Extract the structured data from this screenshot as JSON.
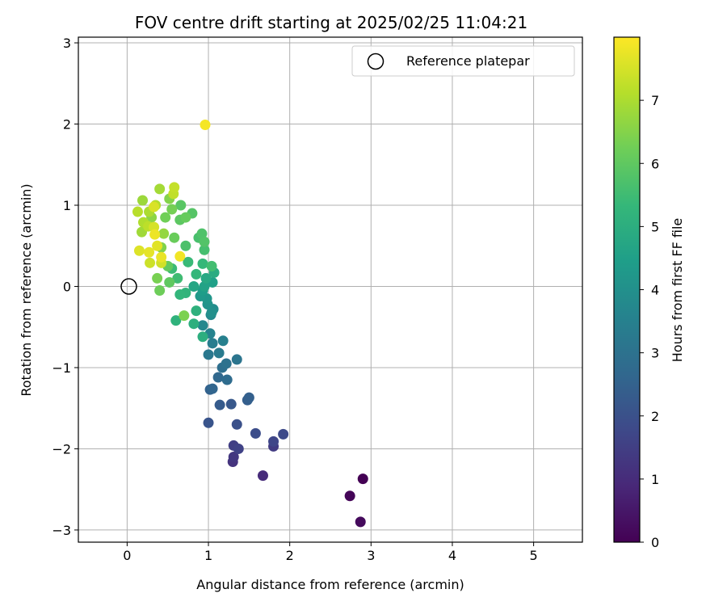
{
  "chart_data": {
    "type": "scatter",
    "title": "FOV centre drift starting at 2025/02/25 11:04:21",
    "xlabel": "Angular distance from reference (arcmin)",
    "ylabel": "Rotation from reference (arcmin)",
    "xlim": [
      -0.6,
      5.6
    ],
    "ylim": [
      -3.15,
      3.07
    ],
    "xticks": [
      0,
      1,
      2,
      3,
      4,
      5
    ],
    "yticks": [
      -3,
      -2,
      -1,
      0,
      1,
      2,
      3
    ],
    "grid": true,
    "colormap": "viridis",
    "colorbar": {
      "label": "Hours from first FF file",
      "min": 0,
      "max": 8,
      "ticks": [
        0,
        1,
        2,
        3,
        4,
        5,
        6,
        7
      ]
    },
    "legend": {
      "position": "top-right",
      "entries": [
        {
          "label": "Reference platepar",
          "marker": "open-circle"
        }
      ]
    },
    "reference_point": {
      "x": 0,
      "y": 0
    },
    "points": [
      {
        "x": 2.9,
        "y": -2.37,
        "t": 0.0
      },
      {
        "x": 2.74,
        "y": -2.58,
        "t": 0.1
      },
      {
        "x": 2.87,
        "y": -2.9,
        "t": 0.2
      },
      {
        "x": 1.67,
        "y": -2.33,
        "t": 1.0
      },
      {
        "x": 1.3,
        "y": -2.16,
        "t": 1.2
      },
      {
        "x": 1.31,
        "y": -2.1,
        "t": 1.3
      },
      {
        "x": 1.8,
        "y": -1.97,
        "t": 1.4
      },
      {
        "x": 1.31,
        "y": -1.96,
        "t": 1.5
      },
      {
        "x": 1.37,
        "y": -2.0,
        "t": 1.6
      },
      {
        "x": 1.8,
        "y": -1.91,
        "t": 1.7
      },
      {
        "x": 1.92,
        "y": -1.82,
        "t": 1.8
      },
      {
        "x": 1.58,
        "y": -1.81,
        "t": 1.9
      },
      {
        "x": 1.35,
        "y": -1.7,
        "t": 2.0
      },
      {
        "x": 1.0,
        "y": -1.68,
        "t": 2.1
      },
      {
        "x": 1.28,
        "y": -1.45,
        "t": 2.2
      },
      {
        "x": 1.14,
        "y": -1.46,
        "t": 2.3
      },
      {
        "x": 1.48,
        "y": -1.4,
        "t": 2.4
      },
      {
        "x": 1.5,
        "y": -1.37,
        "t": 2.45
      },
      {
        "x": 1.02,
        "y": -1.27,
        "t": 2.5
      },
      {
        "x": 1.05,
        "y": -1.26,
        "t": 2.6
      },
      {
        "x": 1.12,
        "y": -1.12,
        "t": 2.7
      },
      {
        "x": 1.23,
        "y": -1.15,
        "t": 2.8
      },
      {
        "x": 1.17,
        "y": -1.0,
        "t": 2.9
      },
      {
        "x": 1.22,
        "y": -0.95,
        "t": 3.0
      },
      {
        "x": 1.35,
        "y": -0.9,
        "t": 3.1
      },
      {
        "x": 1.0,
        "y": -0.84,
        "t": 3.2
      },
      {
        "x": 1.13,
        "y": -0.82,
        "t": 3.3
      },
      {
        "x": 1.05,
        "y": -0.7,
        "t": 3.4
      },
      {
        "x": 1.18,
        "y": -0.67,
        "t": 3.5
      },
      {
        "x": 1.02,
        "y": -0.58,
        "t": 3.6
      },
      {
        "x": 0.93,
        "y": -0.48,
        "t": 3.7
      },
      {
        "x": 1.03,
        "y": -0.35,
        "t": 3.8
      },
      {
        "x": 1.06,
        "y": -0.28,
        "t": 3.9
      },
      {
        "x": 1.04,
        "y": -0.32,
        "t": 4.0
      },
      {
        "x": 0.99,
        "y": -0.22,
        "t": 4.1
      },
      {
        "x": 0.98,
        "y": -0.15,
        "t": 4.2
      },
      {
        "x": 0.9,
        "y": -0.12,
        "t": 4.3
      },
      {
        "x": 0.93,
        "y": -0.05,
        "t": 4.4
      },
      {
        "x": 1.05,
        "y": 0.05,
        "t": 4.5
      },
      {
        "x": 0.95,
        "y": 0.0,
        "t": 4.6
      },
      {
        "x": 0.82,
        "y": 0.0,
        "t": 4.7
      },
      {
        "x": 0.97,
        "y": 0.1,
        "t": 4.8
      },
      {
        "x": 1.07,
        "y": 0.17,
        "t": 4.9
      },
      {
        "x": 0.93,
        "y": -0.62,
        "t": 5.0
      },
      {
        "x": 0.82,
        "y": -0.46,
        "t": 5.05
      },
      {
        "x": 0.85,
        "y": -0.3,
        "t": 5.1
      },
      {
        "x": 0.6,
        "y": -0.42,
        "t": 5.15
      },
      {
        "x": 0.72,
        "y": -0.08,
        "t": 5.2
      },
      {
        "x": 0.65,
        "y": -0.1,
        "t": 5.25
      },
      {
        "x": 0.85,
        "y": 0.15,
        "t": 5.3
      },
      {
        "x": 0.93,
        "y": 0.28,
        "t": 5.35
      },
      {
        "x": 0.75,
        "y": 0.3,
        "t": 5.4
      },
      {
        "x": 0.55,
        "y": 0.22,
        "t": 5.45
      },
      {
        "x": 0.62,
        "y": 0.1,
        "t": 5.5
      },
      {
        "x": 1.04,
        "y": 0.25,
        "t": 5.55
      },
      {
        "x": 0.95,
        "y": 0.45,
        "t": 5.6
      },
      {
        "x": 0.88,
        "y": 0.6,
        "t": 5.65
      },
      {
        "x": 0.72,
        "y": 0.5,
        "t": 5.7
      },
      {
        "x": 0.92,
        "y": 0.65,
        "t": 5.75
      },
      {
        "x": 0.95,
        "y": 0.55,
        "t": 5.8
      },
      {
        "x": 0.8,
        "y": 0.9,
        "t": 5.85
      },
      {
        "x": 0.66,
        "y": 1.0,
        "t": 5.9
      },
      {
        "x": 0.65,
        "y": 0.82,
        "t": 5.95
      },
      {
        "x": 0.52,
        "y": 0.05,
        "t": 6.0
      },
      {
        "x": 0.5,
        "y": 0.25,
        "t": 6.05
      },
      {
        "x": 0.72,
        "y": 0.85,
        "t": 6.1
      },
      {
        "x": 0.58,
        "y": 0.6,
        "t": 6.15
      },
      {
        "x": 0.4,
        "y": -0.05,
        "t": 6.2
      },
      {
        "x": 0.47,
        "y": 0.85,
        "t": 6.25
      },
      {
        "x": 0.55,
        "y": 0.95,
        "t": 6.3
      },
      {
        "x": 0.37,
        "y": 0.1,
        "t": 6.35
      },
      {
        "x": 0.7,
        "y": -0.36,
        "t": 6.4
      },
      {
        "x": 0.42,
        "y": 0.48,
        "t": 6.45
      },
      {
        "x": 0.52,
        "y": 1.08,
        "t": 6.5
      },
      {
        "x": 0.3,
        "y": 0.85,
        "t": 6.6
      },
      {
        "x": 0.45,
        "y": 0.65,
        "t": 6.7
      },
      {
        "x": 0.19,
        "y": 1.06,
        "t": 6.8
      },
      {
        "x": 0.18,
        "y": 0.67,
        "t": 6.85
      },
      {
        "x": 0.4,
        "y": 1.2,
        "t": 6.9
      },
      {
        "x": 0.27,
        "y": 0.92,
        "t": 7.0
      },
      {
        "x": 0.2,
        "y": 0.79,
        "t": 7.05
      },
      {
        "x": 0.35,
        "y": 1.0,
        "t": 7.1
      },
      {
        "x": 0.13,
        "y": 0.92,
        "t": 7.15
      },
      {
        "x": 0.26,
        "y": 0.74,
        "t": 7.2
      },
      {
        "x": 0.57,
        "y": 1.14,
        "t": 7.25
      },
      {
        "x": 0.58,
        "y": 1.22,
        "t": 7.3
      },
      {
        "x": 0.28,
        "y": 0.29,
        "t": 7.4
      },
      {
        "x": 0.42,
        "y": 0.29,
        "t": 7.45
      },
      {
        "x": 0.33,
        "y": 0.73,
        "t": 7.5
      },
      {
        "x": 0.33,
        "y": 0.98,
        "t": 7.55
      },
      {
        "x": 0.15,
        "y": 0.44,
        "t": 7.6
      },
      {
        "x": 0.37,
        "y": 0.5,
        "t": 7.65
      },
      {
        "x": 0.27,
        "y": 0.42,
        "t": 7.7
      },
      {
        "x": 0.42,
        "y": 0.36,
        "t": 7.75
      },
      {
        "x": 0.34,
        "y": 0.64,
        "t": 7.8
      },
      {
        "x": 0.65,
        "y": 0.37,
        "t": 7.85
      },
      {
        "x": 0.96,
        "y": 1.99,
        "t": 7.9
      }
    ]
  }
}
